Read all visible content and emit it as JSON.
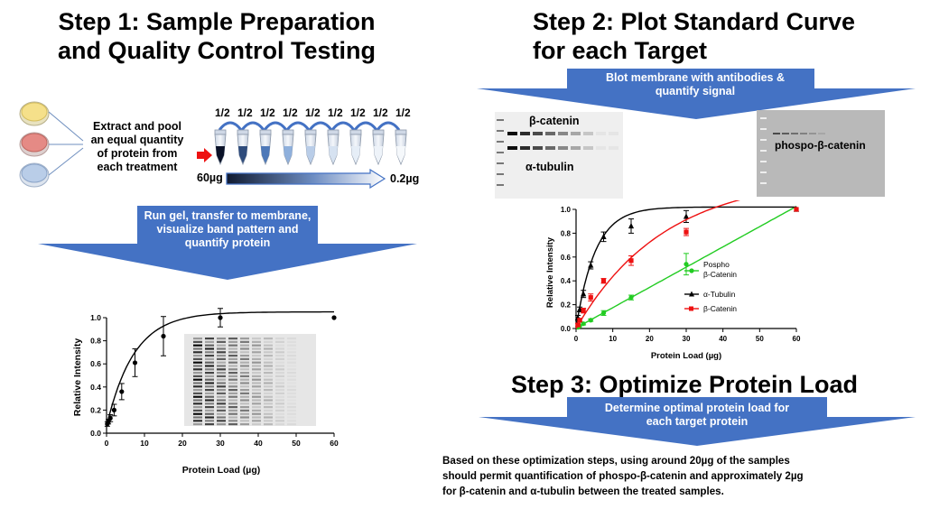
{
  "step1": {
    "title_line1": "Step 1: Sample Preparation",
    "title_line2": "and Quality Control Testing",
    "extract_text": [
      "Extract and pool",
      "an equal quantity",
      "of protein from",
      "each treatment"
    ],
    "dilution_labels": [
      "1/2",
      "1/2",
      "1/2",
      "1/2",
      "1/2",
      "1/2",
      "1/2",
      "1/2",
      "1/2"
    ],
    "gradient_start": "60µg",
    "gradient_end": "0.2µg",
    "arrow_text": [
      "Run gel, transfer to membrane,",
      "visualize band pattern and",
      "quantify protein"
    ]
  },
  "step2": {
    "title_line1": "Step 2: Plot Standard Curve",
    "title_line2": "for each Target",
    "arrow_text": [
      "Blot membrane with antibodies &",
      "quantify signal"
    ],
    "blot1_label_top": "β-catenin",
    "blot1_label_bottom": "α-tubulin",
    "blot2_label": "phospo-β-catenin"
  },
  "step3": {
    "title": "Step 3: Optimize Protein Load",
    "arrow_text": [
      "Determine optimal protein load for",
      "each target protein"
    ],
    "conclusion": [
      "Based on these optimization steps, using around 20µg of the samples",
      "should permit quantification of phospo-β-catenin and approximately 2µg",
      "for β-catenin and α-tubulin between the treated samples."
    ]
  },
  "colors": {
    "arrow_fill": "#4472c4",
    "dish_yellow": "#f5e08a",
    "dish_red": "#e58a85",
    "dish_blue": "#b9cde8",
    "series_green": "#22cc22",
    "series_black": "#000000",
    "series_red": "#ee1111",
    "pointer_red": "#ee1111"
  },
  "chart_data": [
    {
      "type": "line",
      "xlabel": "Protein Load (µg)",
      "ylabel": "Relative Intensity",
      "xlim": [
        0,
        60
      ],
      "ylim": [
        0,
        1.0
      ],
      "xticks": [
        "0",
        "10",
        "20",
        "30",
        "40",
        "50",
        "60"
      ],
      "yticks": [
        "0.0",
        "0.2",
        "0.4",
        "0.6",
        "0.8",
        "1.0"
      ],
      "series": [
        {
          "x": [
            0.2,
            0.5,
            1,
            2,
            4,
            7.5,
            15,
            30,
            60
          ],
          "y": [
            0.08,
            0.1,
            0.13,
            0.2,
            0.36,
            0.61,
            0.84,
            1.0,
            1.0
          ],
          "err": [
            0.02,
            0.02,
            0.03,
            0.05,
            0.07,
            0.12,
            0.17,
            0.08,
            0.0
          ]
        }
      ]
    },
    {
      "type": "line",
      "xlabel": "Protein Load (µg)",
      "ylabel": "Relative Intensity",
      "xlim": [
        0,
        60
      ],
      "ylim": [
        0,
        1.0
      ],
      "xticks": [
        "0",
        "10",
        "20",
        "30",
        "40",
        "50",
        "60"
      ],
      "yticks": [
        "0.0",
        "0.2",
        "0.4",
        "0.6",
        "0.8",
        "1.0"
      ],
      "series": [
        {
          "name": "Pospho β-Catenin",
          "marker": "circle",
          "x": [
            0.5,
            1,
            2,
            4,
            7.5,
            15,
            30,
            60
          ],
          "y": [
            0.01,
            0.02,
            0.04,
            0.07,
            0.13,
            0.26,
            0.54,
            1.0
          ],
          "err": [
            0.0,
            0.0,
            0.01,
            0.01,
            0.02,
            0.02,
            0.09,
            0.0
          ]
        },
        {
          "name": "α-Tubulin",
          "marker": "triangle",
          "x": [
            0.5,
            1,
            2,
            4,
            7.5,
            15,
            30,
            60
          ],
          "y": [
            0.09,
            0.16,
            0.29,
            0.53,
            0.77,
            0.86,
            0.94,
            1.0
          ],
          "err": [
            0.02,
            0.02,
            0.03,
            0.03,
            0.04,
            0.06,
            0.05,
            0.0
          ]
        },
        {
          "name": "β-Catenin",
          "marker": "square",
          "x": [
            0.5,
            1,
            2,
            4,
            7.5,
            15,
            30,
            60
          ],
          "y": [
            0.03,
            0.07,
            0.15,
            0.26,
            0.4,
            0.57,
            0.81,
            1.0
          ],
          "err": [
            0.01,
            0.01,
            0.02,
            0.03,
            0.02,
            0.04,
            0.03,
            0.0
          ]
        }
      ]
    }
  ]
}
